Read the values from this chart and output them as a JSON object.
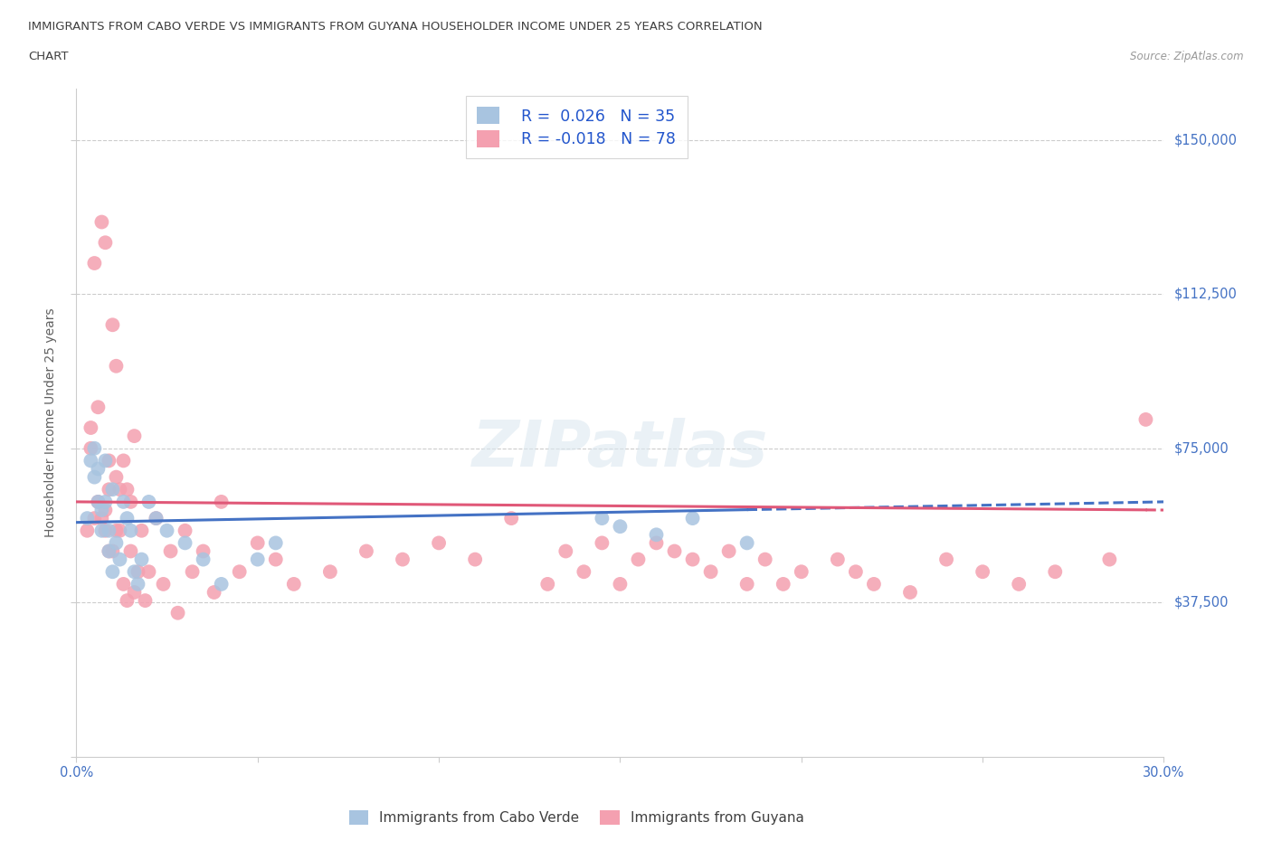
{
  "title_line1": "IMMIGRANTS FROM CABO VERDE VS IMMIGRANTS FROM GUYANA HOUSEHOLDER INCOME UNDER 25 YEARS CORRELATION",
  "title_line2": "CHART",
  "source": "Source: ZipAtlas.com",
  "ylabel": "Householder Income Under 25 years",
  "xlim": [
    0.0,
    0.3
  ],
  "ylim": [
    0,
    162500
  ],
  "yticks": [
    0,
    37500,
    75000,
    112500,
    150000
  ],
  "xticks": [
    0.0,
    0.05,
    0.1,
    0.15,
    0.2,
    0.25,
    0.3
  ],
  "cabo_verde_R": 0.026,
  "cabo_verde_N": 35,
  "guyana_R": -0.018,
  "guyana_N": 78,
  "cabo_verde_color": "#a8c4e0",
  "guyana_color": "#f4a0b0",
  "trendline_cabo_color": "#4472c4",
  "trendline_guyana_color": "#e05878",
  "cabo_verde_x": [
    0.003,
    0.004,
    0.005,
    0.005,
    0.006,
    0.006,
    0.007,
    0.007,
    0.008,
    0.008,
    0.009,
    0.009,
    0.01,
    0.01,
    0.011,
    0.012,
    0.013,
    0.014,
    0.015,
    0.016,
    0.017,
    0.018,
    0.02,
    0.022,
    0.025,
    0.03,
    0.035,
    0.04,
    0.05,
    0.055,
    0.145,
    0.15,
    0.16,
    0.17,
    0.185
  ],
  "cabo_verde_y": [
    58000,
    72000,
    68000,
    75000,
    62000,
    70000,
    60000,
    55000,
    72000,
    62000,
    55000,
    50000,
    65000,
    45000,
    52000,
    48000,
    62000,
    58000,
    55000,
    45000,
    42000,
    48000,
    62000,
    58000,
    55000,
    52000,
    48000,
    42000,
    48000,
    52000,
    58000,
    56000,
    54000,
    58000,
    52000
  ],
  "guyana_x": [
    0.003,
    0.004,
    0.004,
    0.005,
    0.005,
    0.006,
    0.006,
    0.007,
    0.007,
    0.008,
    0.008,
    0.008,
    0.009,
    0.009,
    0.009,
    0.01,
    0.01,
    0.011,
    0.011,
    0.011,
    0.012,
    0.012,
    0.013,
    0.013,
    0.014,
    0.014,
    0.015,
    0.015,
    0.016,
    0.016,
    0.017,
    0.018,
    0.019,
    0.02,
    0.022,
    0.024,
    0.026,
    0.028,
    0.03,
    0.032,
    0.035,
    0.038,
    0.04,
    0.045,
    0.05,
    0.055,
    0.06,
    0.07,
    0.08,
    0.09,
    0.1,
    0.11,
    0.12,
    0.13,
    0.135,
    0.14,
    0.145,
    0.15,
    0.155,
    0.16,
    0.165,
    0.17,
    0.175,
    0.18,
    0.185,
    0.19,
    0.195,
    0.2,
    0.21,
    0.215,
    0.22,
    0.23,
    0.24,
    0.25,
    0.26,
    0.27,
    0.285,
    0.295
  ],
  "guyana_y": [
    55000,
    75000,
    80000,
    58000,
    120000,
    62000,
    85000,
    58000,
    130000,
    60000,
    125000,
    55000,
    72000,
    50000,
    65000,
    50000,
    105000,
    55000,
    68000,
    95000,
    55000,
    65000,
    42000,
    72000,
    38000,
    65000,
    50000,
    62000,
    40000,
    78000,
    45000,
    55000,
    38000,
    45000,
    58000,
    42000,
    50000,
    35000,
    55000,
    45000,
    50000,
    40000,
    62000,
    45000,
    52000,
    48000,
    42000,
    45000,
    50000,
    48000,
    52000,
    48000,
    58000,
    42000,
    50000,
    45000,
    52000,
    42000,
    48000,
    52000,
    50000,
    48000,
    45000,
    50000,
    42000,
    48000,
    42000,
    45000,
    48000,
    45000,
    42000,
    40000,
    48000,
    45000,
    42000,
    45000,
    48000,
    82000
  ],
  "background_color": "#ffffff",
  "grid_color": "#cccccc",
  "axis_color": "#cccccc",
  "title_color": "#404040",
  "tick_label_color": "#4472c4",
  "ylabel_color": "#606060",
  "watermark_text": "ZIPatlas",
  "legend_cabo_label": "Immigrants from Cabo Verde",
  "legend_guyana_label": "Immigrants from Guyana"
}
